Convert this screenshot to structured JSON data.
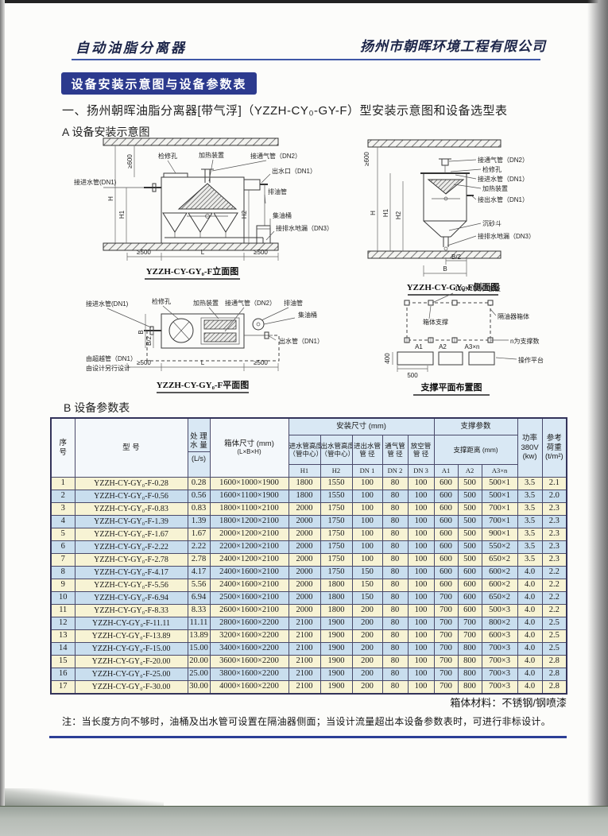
{
  "colors": {
    "banner_bg": "#2c3a8e",
    "accent_line": "#3f57a7",
    "row_yellow": "#f7f3d4",
    "row_blue": "#c9deee",
    "header_bg": "#d9e8f4",
    "bottom_line": "#2c3f96"
  },
  "header": {
    "left": "自动油脂分离器",
    "right": "扬州市朝晖环境工程有限公司"
  },
  "banner": {
    "title": "设备安装示意图与设备参数表"
  },
  "section": {
    "title": "一、扬州朝晖油脂分离器[带气浮]（YZZH-CY₀-GY-F）型安装示意图和设备选型表",
    "label_a": "A 设备安装示意图",
    "label_b": "B 设备参数表"
  },
  "diagrams": {
    "elevation": {
      "caption": "YZZH-CY-GY₀-F立面图",
      "labels": {
        "dim600": "≥600",
        "access": "检修孔",
        "heater": "加热装置",
        "vent": "接通气管（DN2）",
        "inlet": "接进水管(DN1)",
        "outlet": "出水口（DN1）",
        "oilpipe": "排油管",
        "barrel": "集油桶",
        "drain": "接排水地漏（DN3）",
        "h": "H",
        "h1": "H1",
        "h2": "H2",
        "s500l": "≥500",
        "l": "L",
        "s500r": "≥500"
      }
    },
    "side": {
      "caption": "YZZH-CY-GY₀-F侧面图",
      "labels": {
        "vent": "接通气管（DN2）",
        "access": "检修孔",
        "inlet": "接进水管（DN1）",
        "heater": "加热装置",
        "outlet": "接出水管（DN1）",
        "sand": "沉砂斗",
        "drain": "接排水地漏（DN3）",
        "dim600": "≥600",
        "h": "H",
        "h1": "H1",
        "h2": "H2",
        "b2": "B/2",
        "b": "B"
      }
    },
    "plan": {
      "caption": "YZZH-CY-GY₀-F平面图",
      "labels": {
        "inlet": "接进水管(DN1)",
        "access": "检修孔",
        "heater": "加热装置",
        "vent": "接通气管（DN2）",
        "oilpipe": "排油管",
        "barrel": "集油桶",
        "outlet": "出水管（DN1）",
        "b": "B",
        "b2": "B/2",
        "bypass1": "由超越管（DN1）",
        "bypass2": "由设计另行设计",
        "s500l": "≥500",
        "l": "L",
        "s500r": "≥500"
      }
    },
    "support": {
      "caption": "支撑平面布置图",
      "labels": {
        "steel": "100X100X8钢板",
        "support": "箱体支撑",
        "box": "隔油器箱体",
        "a1": "A1",
        "a2": "A2",
        "a3n": "A3×n",
        "note": "n为支撑数",
        "platform": "操作平台",
        "d400": "400",
        "d500": "500"
      }
    }
  },
  "table": {
    "headers": {
      "seq_l1": "序",
      "seq_l2": "号",
      "model": "型  号",
      "capacity_l1": "处 理",
      "capacity_l2": "水 量",
      "capacity_unit": "(L/s)",
      "box_l1": "箱体尺寸 (mm)",
      "box_l2": "(L×B×H)",
      "install_group": "安装尺寸 (mm)",
      "support_group": "支撑参数",
      "h1_l1": "进水管高度",
      "h1_l2": "（管中心）",
      "h2_l1": "出水管高度",
      "h2_l2": "（管中心）",
      "dn1_l1": "进出水管",
      "dn1_l2": "管 径",
      "dn2_l1": "通气管",
      "dn2_l2": "管 径",
      "dn3_l1": "放空管",
      "dn3_l2": "管 径",
      "distance": "支撑距离 (mm)",
      "k_h1": "H1",
      "k_h2": "H2",
      "k_dn1": "DN 1",
      "k_dn2": "DN 2",
      "k_dn3": "DN 3",
      "k_a1": "A1",
      "k_a2": "A2",
      "k_a3": "A3×n",
      "power_l1": "功率",
      "power_l2": "380V",
      "power_l3": "(kw)",
      "load_l1": "参考",
      "load_l2": "荷重",
      "load_l3": "(t/m²)"
    },
    "rows": [
      [
        "1",
        "YZZH-CY-GY₀-F-0.28",
        "0.28",
        "1600×1000×1900",
        "1800",
        "1550",
        "100",
        "80",
        "100",
        "600",
        "500",
        "500×1",
        "3.5",
        "2.1"
      ],
      [
        "2",
        "YZZH-CY-GY₀-F-0.56",
        "0.56",
        "1600×1100×1900",
        "1800",
        "1550",
        "100",
        "80",
        "100",
        "600",
        "500",
        "500×1",
        "3.5",
        "2.0"
      ],
      [
        "3",
        "YZZH-CY-GY₀-F-0.83",
        "0.83",
        "1800×1100×2100",
        "2000",
        "1750",
        "100",
        "80",
        "100",
        "600",
        "500",
        "700×1",
        "3.5",
        "2.3"
      ],
      [
        "4",
        "YZZH-CY-GY₀-F-1.39",
        "1.39",
        "1800×1200×2100",
        "2000",
        "1750",
        "100",
        "80",
        "100",
        "600",
        "500",
        "700×1",
        "3.5",
        "2.3"
      ],
      [
        "5",
        "YZZH-CY-GY₀-F-1.67",
        "1.67",
        "2000×1200×2100",
        "2000",
        "1750",
        "100",
        "80",
        "100",
        "600",
        "500",
        "900×1",
        "3.5",
        "2.3"
      ],
      [
        "6",
        "YZZH-CY-GY₀-F-2.22",
        "2.22",
        "2200×1200×2100",
        "2000",
        "1750",
        "100",
        "80",
        "100",
        "600",
        "500",
        "550×2",
        "3.5",
        "2.3"
      ],
      [
        "7",
        "YZZH-CY-GY₀-F-2.78",
        "2.78",
        "2400×1200×2100",
        "2000",
        "1750",
        "100",
        "80",
        "100",
        "600",
        "500",
        "650×2",
        "3.5",
        "2.3"
      ],
      [
        "8",
        "YZZH-CY-GY₀-F-4.17",
        "4.17",
        "2400×1600×2100",
        "2000",
        "1750",
        "150",
        "80",
        "100",
        "600",
        "600",
        "600×2",
        "4.0",
        "2.2"
      ],
      [
        "9",
        "YZZH-CY-GY₀-F-5.56",
        "5.56",
        "2400×1600×2100",
        "2000",
        "1800",
        "150",
        "80",
        "100",
        "600",
        "600",
        "600×2",
        "4.0",
        "2.2"
      ],
      [
        "10",
        "YZZH-CY-GY₀-F-6.94",
        "6.94",
        "2500×1600×2100",
        "2000",
        "1800",
        "150",
        "80",
        "100",
        "700",
        "600",
        "650×2",
        "4.0",
        "2.2"
      ],
      [
        "11",
        "YZZH-CY-GY₀-F-8.33",
        "8.33",
        "2600×1600×2100",
        "2000",
        "1800",
        "200",
        "80",
        "100",
        "700",
        "600",
        "500×3",
        "4.0",
        "2.2"
      ],
      [
        "12",
        "YZZH-CY-GY₀-F-11.11",
        "11.11",
        "2800×1600×2200",
        "2100",
        "1900",
        "200",
        "80",
        "100",
        "700",
        "700",
        "800×2",
        "4.0",
        "2.5"
      ],
      [
        "13",
        "YZZH-CY-GY₀-F-13.89",
        "13.89",
        "3200×1600×2200",
        "2100",
        "1900",
        "200",
        "80",
        "100",
        "700",
        "700",
        "600×3",
        "4.0",
        "2.5"
      ],
      [
        "14",
        "YZZH-CY-GY₀-F-15.00",
        "15.00",
        "3400×1600×2200",
        "2100",
        "1900",
        "200",
        "80",
        "100",
        "700",
        "800",
        "700×3",
        "4.0",
        "2.5"
      ],
      [
        "15",
        "YZZH-CY-GY₀-F-20.00",
        "20.00",
        "3600×1600×2200",
        "2100",
        "1900",
        "200",
        "80",
        "100",
        "700",
        "800",
        "700×3",
        "4.0",
        "2.8"
      ],
      [
        "16",
        "YZZH-CY-GY₀-F-25.00",
        "25.00",
        "3800×1600×2200",
        "2100",
        "1900",
        "200",
        "80",
        "100",
        "700",
        "800",
        "700×3",
        "4.0",
        "2.8"
      ],
      [
        "17",
        "YZZH-CY-GY₀-F-30.00",
        "30.00",
        "4000×1600×2200",
        "2100",
        "1900",
        "200",
        "80",
        "100",
        "700",
        "800",
        "700×3",
        "4.0",
        "2.8"
      ]
    ]
  },
  "footer": {
    "material": "箱体材料：不锈钢/钢喷漆",
    "note": "注：当长度方向不够时，油桶及出水管可设置在隔油器侧面；当设计流量超出本设备参数表时，可进行非标设计。"
  }
}
